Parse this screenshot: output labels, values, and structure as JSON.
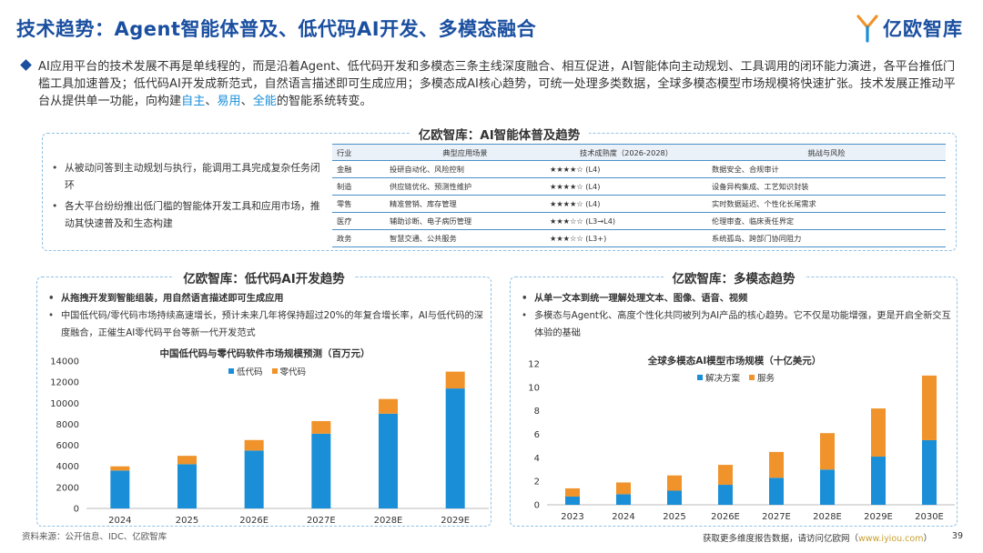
{
  "header": {
    "title": "技术趋势：Agent智能体普及、低代码AI开发、多模态融合",
    "logo_text": "亿欧智库"
  },
  "intro": {
    "part1": "AI应用平台的技术发展不再是单线程的，而是沿着Agent、低代码开发和多模态三条主线深度融合、相互促进，AI智能体向主动规划、工具调用的闭环能力演进，各平台推低门槛工具加速普及；低代码AI开发成新范式，自然语言描述即可生成应用；多模态成AI核心趋势，可统一处理多类数据，全球多模态模型市场规模将快速扩张。技术发展正推动平台从提供单一功能，向构建",
    "hl1": "自主",
    "sep1": "、",
    "hl2": "易用",
    "sep2": "、",
    "hl3": "全能",
    "part2": "的智能系统转变。"
  },
  "agent_panel": {
    "title": "亿欧智库：AI智能体普及趋势",
    "bullets": [
      "从被动问答到主动规划与执行，能调用工具完成复杂任务闭环",
      "各大平台纷纷推出低门槛的智能体开发工具和应用市场，推动其快速普及和生态构建"
    ],
    "table": {
      "headers": [
        "行业",
        "典型应用场景",
        "技术成熟度（2026-2028）",
        "挑战与风险"
      ],
      "rows": [
        [
          "金融",
          "投研自动化、风险控制",
          "★★★★☆ (L4)",
          "数据安全、合规审计"
        ],
        [
          "制造",
          "供应链优化、预测性维护",
          "★★★★☆ (L4)",
          "设备异构集成、工艺知识封装"
        ],
        [
          "零售",
          "精准营销、库存管理",
          "★★★★☆ (L4)",
          "实时数据延迟、个性化长尾需求"
        ],
        [
          "医疗",
          "辅助诊断、电子病历管理",
          "★★★☆☆ (L3→L4)",
          "伦理审查、临床责任界定"
        ],
        [
          "政务",
          "智慧交通、公共服务",
          "★★★☆☆ (L3+)",
          "系统孤岛、跨部门协同阻力"
        ]
      ]
    }
  },
  "lowcode_panel": {
    "title": "亿欧智库：低代码AI开发趋势",
    "bullets": [
      "从拖拽开发到智能组装，用自然语言描述即可生成应用",
      "中国低代码/零代码市场持续高速增长，预计未来几年将保持超过20%的年复合增长率，AI与低代码的深度融合，正催生AI零代码平台等新一代开发范式"
    ]
  },
  "multimodal_panel": {
    "title": "亿欧智库：多模态趋势",
    "bullets": [
      "从单一文本到统一理解处理文本、图像、语音、视频",
      "多模态与Agent化、高度个性化共同被列为AI产品的核心趋势。它不仅是功能增强，更是开启全新交互体验的基础"
    ]
  },
  "colors": {
    "blue": "#1a8fd8",
    "orange": "#f0932b",
    "title_blue": "#1a4fa0"
  },
  "chart_data": [
    {
      "type": "bar",
      "stacked": true,
      "title": "中国低代码与零代码软件市场规模预测（百万元）",
      "categories": [
        "2024",
        "2025",
        "2026E",
        "2027E",
        "2028E",
        "2029E"
      ],
      "series": [
        {
          "name": "低代码",
          "values": [
            3600,
            4200,
            5500,
            7100,
            9000,
            11400
          ]
        },
        {
          "name": "零代码",
          "values": [
            400,
            800,
            1000,
            1200,
            1400,
            1600
          ]
        }
      ],
      "yticks": [
        "0",
        "2000",
        "4000",
        "6000",
        "8000",
        "10000",
        "12000",
        "14000"
      ],
      "ylim": [
        0,
        14000
      ],
      "xlabel": "",
      "ylabel": ""
    },
    {
      "type": "bar",
      "stacked": true,
      "title": "全球多模态AI模型市场规模（十亿美元）",
      "categories": [
        "2023",
        "2024",
        "2025",
        "2026E",
        "2027E",
        "2028E",
        "2029E",
        "2030E"
      ],
      "series": [
        {
          "name": "解决方案",
          "values": [
            0.7,
            0.9,
            1.2,
            1.7,
            2.3,
            3.0,
            4.1,
            5.5
          ]
        },
        {
          "name": "服务",
          "values": [
            0.7,
            1.0,
            1.3,
            1.7,
            2.2,
            3.1,
            4.1,
            5.5
          ]
        }
      ],
      "yticks": [
        "0",
        "2",
        "4",
        "6",
        "8",
        "10",
        "12"
      ],
      "ylim": [
        0,
        12
      ],
      "xlabel": "",
      "ylabel": ""
    }
  ],
  "footer": {
    "source": "资料来源：公开信息、IDC、亿欧智库",
    "note": "获取更多维度报告数据，请访问亿欧网（",
    "url": "www.iyiou.com",
    "note_end": "）",
    "page": "39"
  }
}
